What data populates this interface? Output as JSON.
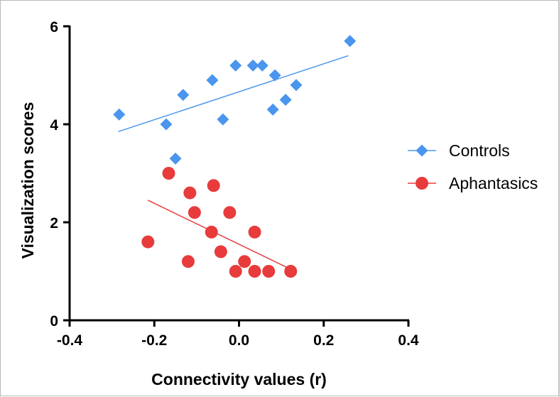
{
  "chart_data": {
    "type": "scatter",
    "xlabel": "Connectivity values (r)",
    "ylabel": "Visualization scores",
    "xlim": [
      -0.4,
      0.4
    ],
    "ylim": [
      0,
      6
    ],
    "x_ticks": [
      "-0.4",
      "-0.2",
      "0.0",
      "0.2",
      "0.4"
    ],
    "y_ticks": [
      "0",
      "2",
      "4",
      "6"
    ],
    "grid": false,
    "legend_position": "right",
    "series": [
      {
        "name": "Controls",
        "marker": "diamond",
        "color": "#4a95ee",
        "points": [
          {
            "x": -0.283,
            "y": 4.2
          },
          {
            "x": -0.172,
            "y": 4.0
          },
          {
            "x": -0.15,
            "y": 3.3
          },
          {
            "x": -0.132,
            "y": 4.6
          },
          {
            "x": -0.063,
            "y": 4.9
          },
          {
            "x": -0.038,
            "y": 4.1
          },
          {
            "x": -0.008,
            "y": 5.2
          },
          {
            "x": 0.033,
            "y": 5.2
          },
          {
            "x": 0.055,
            "y": 5.2
          },
          {
            "x": 0.08,
            "y": 4.3
          },
          {
            "x": 0.085,
            "y": 5.0
          },
          {
            "x": 0.11,
            "y": 4.5
          },
          {
            "x": 0.135,
            "y": 4.8
          },
          {
            "x": 0.262,
            "y": 5.7
          }
        ],
        "trend": {
          "x": [
            -0.285,
            0.258
          ],
          "y": [
            3.85,
            5.4
          ]
        }
      },
      {
        "name": "Aphantasics",
        "marker": "circle",
        "color": "#e83b3b",
        "points": [
          {
            "x": -0.215,
            "y": 1.6
          },
          {
            "x": -0.166,
            "y": 3.0
          },
          {
            "x": -0.12,
            "y": 1.2
          },
          {
            "x": -0.116,
            "y": 2.6
          },
          {
            "x": -0.105,
            "y": 2.2
          },
          {
            "x": -0.065,
            "y": 1.8
          },
          {
            "x": -0.06,
            "y": 2.75
          },
          {
            "x": -0.043,
            "y": 1.4
          },
          {
            "x": -0.022,
            "y": 2.2
          },
          {
            "x": -0.008,
            "y": 1.0
          },
          {
            "x": 0.013,
            "y": 1.2
          },
          {
            "x": 0.037,
            "y": 1.8
          },
          {
            "x": 0.037,
            "y": 1.0
          },
          {
            "x": 0.07,
            "y": 1.0
          },
          {
            "x": 0.122,
            "y": 1.0
          }
        ],
        "trend": {
          "x": [
            -0.215,
            0.12
          ],
          "y": [
            2.45,
            1.05
          ]
        }
      }
    ]
  }
}
